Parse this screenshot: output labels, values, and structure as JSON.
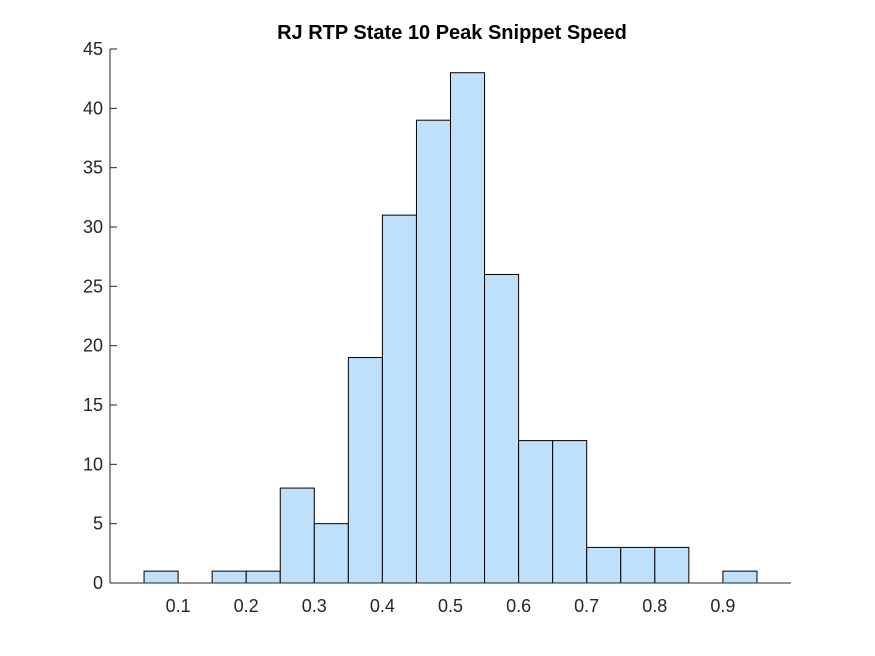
{
  "chart_data": {
    "type": "bar",
    "title": "RJ  RTP State 10 Peak Snippet Speed",
    "xlabel": "",
    "ylabel": "",
    "bin_edges": [
      0.05,
      0.1,
      0.15,
      0.2,
      0.25,
      0.3,
      0.35,
      0.4,
      0.45,
      0.5,
      0.55,
      0.6,
      0.65,
      0.7,
      0.75,
      0.8,
      0.85,
      0.9,
      0.95
    ],
    "values": [
      1,
      0,
      1,
      1,
      8,
      5,
      19,
      31,
      39,
      43,
      26,
      12,
      12,
      3,
      3,
      3,
      0,
      1
    ],
    "xlim": [
      0,
      1
    ],
    "ylim": [
      0,
      45
    ],
    "xticks": [
      0.1,
      0.2,
      0.3,
      0.4,
      0.5,
      0.6,
      0.7,
      0.8,
      0.9
    ],
    "xtick_labels": [
      "0.1",
      "0.2",
      "0.3",
      "0.4",
      "0.5",
      "0.6",
      "0.7",
      "0.8",
      "0.9"
    ],
    "yticks": [
      0,
      5,
      10,
      15,
      20,
      25,
      30,
      35,
      40,
      45
    ],
    "ytick_labels": [
      "0",
      "5",
      "10",
      "15",
      "20",
      "25",
      "30",
      "35",
      "40",
      "45"
    ],
    "bar_color": "#bfe0fb",
    "edge_color": "#000000",
    "grid": false
  }
}
